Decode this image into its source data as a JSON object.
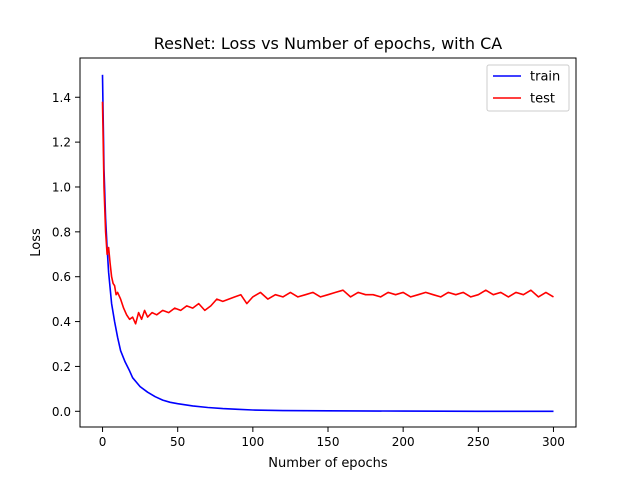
{
  "chart_data": {
    "type": "line",
    "title": "ResNet: Loss vs Number of epochs, with CA",
    "xlabel": "Number of epochs",
    "ylabel": "Loss",
    "xlim": [
      -15,
      315
    ],
    "ylim": [
      -0.07,
      1.575
    ],
    "xticks": [
      0,
      50,
      100,
      150,
      200,
      250,
      300
    ],
    "yticks": [
      0.0,
      0.2,
      0.4,
      0.6,
      0.8,
      1.0,
      1.2,
      1.4
    ],
    "ytick_labels": [
      "0.0",
      "0.2",
      "0.4",
      "0.6",
      "0.8",
      "1.0",
      "1.2",
      "1.4"
    ],
    "xtick_labels": [
      "0",
      "50",
      "100",
      "150",
      "200",
      "250",
      "300"
    ],
    "grid": false,
    "legend": "top-right",
    "series": [
      {
        "name": "train",
        "color": "#0000ff",
        "x": [
          0,
          1,
          2,
          3,
          4,
          5,
          6,
          8,
          10,
          12,
          15,
          18,
          20,
          25,
          30,
          35,
          40,
          45,
          50,
          60,
          70,
          80,
          90,
          100,
          120,
          150,
          200,
          250,
          300
        ],
        "y": [
          1.5,
          1.08,
          0.86,
          0.73,
          0.62,
          0.55,
          0.48,
          0.4,
          0.33,
          0.27,
          0.22,
          0.18,
          0.15,
          0.11,
          0.085,
          0.065,
          0.05,
          0.04,
          0.034,
          0.024,
          0.017,
          0.012,
          0.009,
          0.006,
          0.003,
          0.002,
          0.001,
          0.0,
          0.0
        ]
      },
      {
        "name": "test",
        "color": "#ff0000",
        "x": [
          0,
          1,
          2,
          3,
          4,
          5,
          6,
          7,
          8,
          9,
          10,
          12,
          14,
          16,
          18,
          20,
          22,
          24,
          26,
          28,
          30,
          33,
          36,
          40,
          44,
          48,
          52,
          56,
          60,
          64,
          68,
          72,
          76,
          80,
          84,
          88,
          92,
          96,
          100,
          105,
          110,
          115,
          120,
          125,
          130,
          135,
          140,
          145,
          150,
          155,
          160,
          165,
          170,
          175,
          180,
          185,
          190,
          195,
          200,
          205,
          210,
          215,
          220,
          225,
          230,
          235,
          240,
          245,
          250,
          255,
          260,
          265,
          270,
          275,
          280,
          285,
          290,
          295,
          300
        ],
        "y": [
          1.38,
          1.0,
          0.8,
          0.7,
          0.73,
          0.66,
          0.6,
          0.57,
          0.56,
          0.52,
          0.53,
          0.5,
          0.46,
          0.43,
          0.41,
          0.42,
          0.39,
          0.44,
          0.41,
          0.45,
          0.42,
          0.44,
          0.43,
          0.45,
          0.44,
          0.46,
          0.45,
          0.47,
          0.46,
          0.48,
          0.45,
          0.47,
          0.5,
          0.49,
          0.5,
          0.51,
          0.52,
          0.48,
          0.51,
          0.53,
          0.5,
          0.52,
          0.51,
          0.53,
          0.51,
          0.52,
          0.53,
          0.51,
          0.52,
          0.53,
          0.54,
          0.51,
          0.53,
          0.52,
          0.52,
          0.51,
          0.53,
          0.52,
          0.53,
          0.51,
          0.52,
          0.53,
          0.52,
          0.51,
          0.53,
          0.52,
          0.53,
          0.51,
          0.52,
          0.54,
          0.52,
          0.53,
          0.51,
          0.53,
          0.52,
          0.54,
          0.51,
          0.53,
          0.51
        ]
      }
    ]
  }
}
